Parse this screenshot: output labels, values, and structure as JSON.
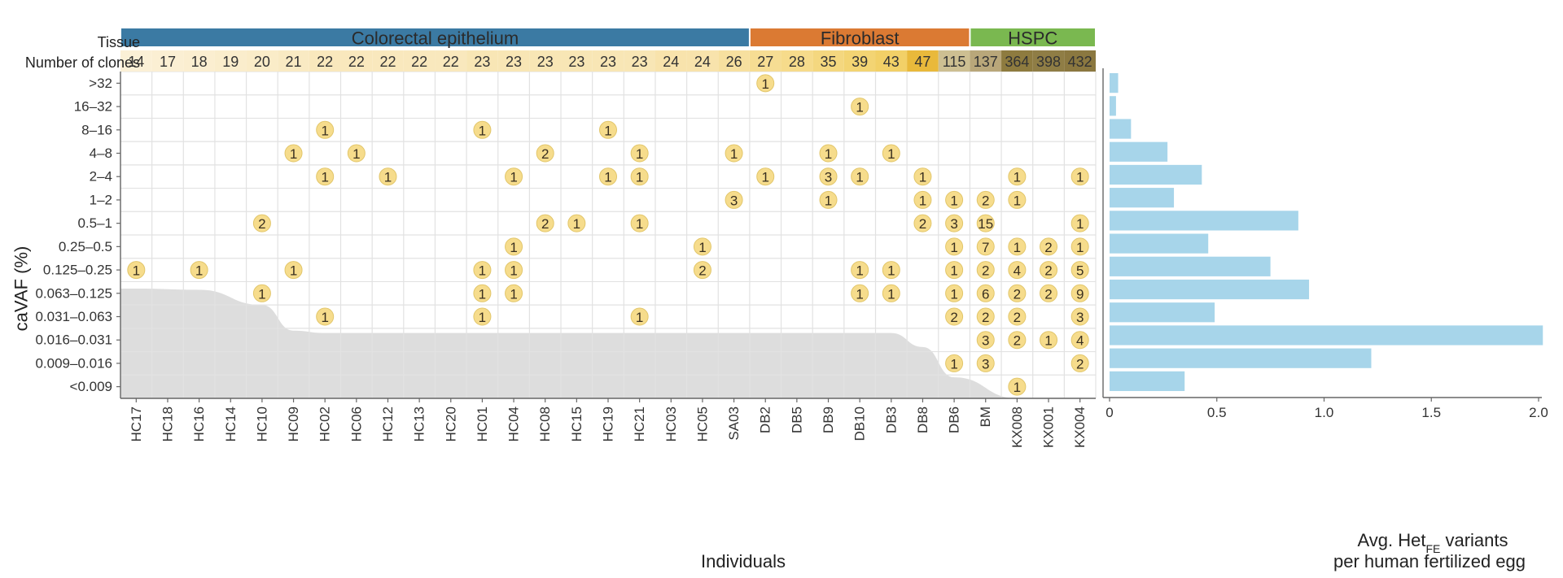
{
  "labels": {
    "tissue_row": "Tissue",
    "clones_row": "Number of clones",
    "y_axis": "caVAF (%)",
    "x_axis": "Individuals",
    "bar_axis_line1": "Avg. Het",
    "bar_axis_sub": "FE",
    "bar_axis_line1_end": " variants",
    "bar_axis_line2": "per human fertilized egg"
  },
  "chart_data": [
    {
      "type": "heatmap",
      "individuals": [
        "HC17",
        "HC18",
        "HC16",
        "HC14",
        "HC10",
        "HC09",
        "HC02",
        "HC06",
        "HC12",
        "HC13",
        "HC20",
        "HC01",
        "HC04",
        "HC08",
        "HC15",
        "HC19",
        "HC21",
        "HC03",
        "HC05",
        "SA03",
        "DB2",
        "DB5",
        "DB9",
        "DB10",
        "DB3",
        "DB8",
        "DB6",
        "BM",
        "KX008",
        "KX001",
        "KX004"
      ],
      "clones": [
        "14",
        "17",
        "18",
        "19",
        "20",
        "21",
        "22",
        "22",
        "22",
        "22",
        "22",
        "23",
        "23",
        "23",
        "23",
        "23",
        "23",
        "24",
        "24",
        "26",
        "27",
        "28",
        "35",
        "39",
        "43",
        "47",
        "115",
        "137",
        "364",
        "398",
        "432"
      ],
      "clone_colors": [
        "#fbf0d6",
        "#fbefd3",
        "#fbeed0",
        "#faedcc",
        "#faecc8",
        "#f9eac3",
        "#f9e8bd",
        "#f9e8bd",
        "#f9e8bd",
        "#f9e8bd",
        "#f9e8bd",
        "#f8e6b5",
        "#f8e6b5",
        "#f8e6b5",
        "#f8e6b5",
        "#f8e6b5",
        "#f8e6b5",
        "#f8e3ac",
        "#f8e3ac",
        "#f7e09f",
        "#f6dd93",
        "#f6db8b",
        "#f4d77f",
        "#f3d473",
        "#f2d067",
        "#e9b93b",
        "#cdbf92",
        "#b9a77a",
        "#8e7b3f",
        "#8f7d45",
        "#8b7840"
      ],
      "tissues": [
        {
          "name": "Colorectal epithelium",
          "start": 0,
          "end": 19,
          "color": "#3b7aa3"
        },
        {
          "name": "Fibroblast",
          "start": 20,
          "end": 26,
          "color": "#db7a33"
        },
        {
          "name": "HSPC",
          "start": 27,
          "end": 30,
          "color": "#7ab850"
        }
      ],
      "vaf_bins": [
        ">32",
        "16–32",
        "8–16",
        "4–8",
        "2–4",
        "1–2",
        "0.5–1",
        "0.25–0.5",
        "0.125–0.25",
        "0.063–0.125",
        "0.031–0.063",
        "0.016–0.031",
        "0.009–0.016",
        "<0.009"
      ],
      "counts": [
        {
          "individual": "DB2",
          "bin": ">32",
          "count": 1
        },
        {
          "individual": "DB10",
          "bin": "16–32",
          "count": 1
        },
        {
          "individual": "HC02",
          "bin": "8–16",
          "count": 1
        },
        {
          "individual": "HC01",
          "bin": "8–16",
          "count": 1
        },
        {
          "individual": "HC19",
          "bin": "8–16",
          "count": 1
        },
        {
          "individual": "HC09",
          "bin": "4–8",
          "count": 1
        },
        {
          "individual": "HC06",
          "bin": "4–8",
          "count": 1
        },
        {
          "individual": "HC08",
          "bin": "4–8",
          "count": 2
        },
        {
          "individual": "HC21",
          "bin": "4–8",
          "count": 1
        },
        {
          "individual": "SA03",
          "bin": "4–8",
          "count": 1
        },
        {
          "individual": "DB9",
          "bin": "4–8",
          "count": 1
        },
        {
          "individual": "DB3",
          "bin": "4–8",
          "count": 1
        },
        {
          "individual": "HC02",
          "bin": "2–4",
          "count": 1
        },
        {
          "individual": "HC12",
          "bin": "2–4",
          "count": 1
        },
        {
          "individual": "HC04",
          "bin": "2–4",
          "count": 1
        },
        {
          "individual": "HC19",
          "bin": "2–4",
          "count": 1
        },
        {
          "individual": "HC21",
          "bin": "2–4",
          "count": 1
        },
        {
          "individual": "DB2",
          "bin": "2–4",
          "count": 1
        },
        {
          "individual": "DB9",
          "bin": "2–4",
          "count": 3
        },
        {
          "individual": "DB10",
          "bin": "2–4",
          "count": 1
        },
        {
          "individual": "DB8",
          "bin": "2–4",
          "count": 1
        },
        {
          "individual": "KX008",
          "bin": "2–4",
          "count": 1
        },
        {
          "individual": "KX004",
          "bin": "2–4",
          "count": 1
        },
        {
          "individual": "SA03",
          "bin": "1–2",
          "count": 3
        },
        {
          "individual": "DB9",
          "bin": "1–2",
          "count": 1
        },
        {
          "individual": "DB8",
          "bin": "1–2",
          "count": 1
        },
        {
          "individual": "DB6",
          "bin": "1–2",
          "count": 1
        },
        {
          "individual": "BM",
          "bin": "1–2",
          "count": 2
        },
        {
          "individual": "KX008",
          "bin": "1–2",
          "count": 1
        },
        {
          "individual": "HC10",
          "bin": "0.5–1",
          "count": 2
        },
        {
          "individual": "HC08",
          "bin": "0.5–1",
          "count": 2
        },
        {
          "individual": "HC15",
          "bin": "0.5–1",
          "count": 1
        },
        {
          "individual": "HC21",
          "bin": "0.5–1",
          "count": 1
        },
        {
          "individual": "DB8",
          "bin": "0.5–1",
          "count": 2
        },
        {
          "individual": "DB6",
          "bin": "0.5–1",
          "count": 3
        },
        {
          "individual": "BM",
          "bin": "0.5–1",
          "count": 15
        },
        {
          "individual": "KX004",
          "bin": "0.5–1",
          "count": 1
        },
        {
          "individual": "HC04",
          "bin": "0.25–0.5",
          "count": 1
        },
        {
          "individual": "HC05",
          "bin": "0.25–0.5",
          "count": 1
        },
        {
          "individual": "DB6",
          "bin": "0.25–0.5",
          "count": 1
        },
        {
          "individual": "BM",
          "bin": "0.25–0.5",
          "count": 7
        },
        {
          "individual": "KX008",
          "bin": "0.25–0.5",
          "count": 1
        },
        {
          "individual": "KX001",
          "bin": "0.25–0.5",
          "count": 2
        },
        {
          "individual": "KX004",
          "bin": "0.25–0.5",
          "count": 1
        },
        {
          "individual": "HC17",
          "bin": "0.125–0.25",
          "count": 1
        },
        {
          "individual": "HC16",
          "bin": "0.125–0.25",
          "count": 1
        },
        {
          "individual": "HC09",
          "bin": "0.125–0.25",
          "count": 1
        },
        {
          "individual": "HC01",
          "bin": "0.125–0.25",
          "count": 1
        },
        {
          "individual": "HC04",
          "bin": "0.125–0.25",
          "count": 1
        },
        {
          "individual": "HC05",
          "bin": "0.125–0.25",
          "count": 2
        },
        {
          "individual": "DB10",
          "bin": "0.125–0.25",
          "count": 1
        },
        {
          "individual": "DB3",
          "bin": "0.125–0.25",
          "count": 1
        },
        {
          "individual": "DB6",
          "bin": "0.125–0.25",
          "count": 1
        },
        {
          "individual": "BM",
          "bin": "0.125–0.25",
          "count": 2
        },
        {
          "individual": "KX008",
          "bin": "0.125–0.25",
          "count": 4
        },
        {
          "individual": "KX001",
          "bin": "0.125–0.25",
          "count": 2
        },
        {
          "individual": "KX004",
          "bin": "0.125–0.25",
          "count": 5
        },
        {
          "individual": "HC10",
          "bin": "0.063–0.125",
          "count": 1
        },
        {
          "individual": "HC01",
          "bin": "0.063–0.125",
          "count": 1
        },
        {
          "individual": "HC04",
          "bin": "0.063–0.125",
          "count": 1
        },
        {
          "individual": "DB10",
          "bin": "0.063–0.125",
          "count": 1
        },
        {
          "individual": "DB3",
          "bin": "0.063–0.125",
          "count": 1
        },
        {
          "individual": "DB6",
          "bin": "0.063–0.125",
          "count": 1
        },
        {
          "individual": "BM",
          "bin": "0.063–0.125",
          "count": 6
        },
        {
          "individual": "KX008",
          "bin": "0.063–0.125",
          "count": 2
        },
        {
          "individual": "KX001",
          "bin": "0.063–0.125",
          "count": 2
        },
        {
          "individual": "KX004",
          "bin": "0.063–0.125",
          "count": 9
        },
        {
          "individual": "HC02",
          "bin": "0.031–0.063",
          "count": 1
        },
        {
          "individual": "HC01",
          "bin": "0.031–0.063",
          "count": 1
        },
        {
          "individual": "HC21",
          "bin": "0.031–0.063",
          "count": 1
        },
        {
          "individual": "DB6",
          "bin": "0.031–0.063",
          "count": 2
        },
        {
          "individual": "BM",
          "bin": "0.031–0.063",
          "count": 2
        },
        {
          "individual": "KX008",
          "bin": "0.031–0.063",
          "count": 2
        },
        {
          "individual": "KX004",
          "bin": "0.031–0.063",
          "count": 3
        },
        {
          "individual": "BM",
          "bin": "0.016–0.031",
          "count": 3
        },
        {
          "individual": "KX008",
          "bin": "0.016–0.031",
          "count": 2
        },
        {
          "individual": "KX001",
          "bin": "0.016–0.031",
          "count": 1
        },
        {
          "individual": "KX004",
          "bin": "0.016–0.031",
          "count": 4
        },
        {
          "individual": "DB6",
          "bin": "0.009–0.016",
          "count": 1
        },
        {
          "individual": "BM",
          "bin": "0.009–0.016",
          "count": 3
        },
        {
          "individual": "KX004",
          "bin": "0.009–0.016",
          "count": 2
        },
        {
          "individual": "KX008",
          "bin": "<0.009",
          "count": 1
        }
      ],
      "detection_limit_shading": [
        {
          "individual": "HC17",
          "bin_index": 8.8
        },
        {
          "individual": "HC16",
          "bin_index": 8.85
        },
        {
          "individual": "HC10",
          "bin_index": 9.5
        },
        {
          "individual": "HC09",
          "bin_index": 10.6
        },
        {
          "individual": "HC02",
          "bin_index": 10.7
        },
        {
          "individual": "DB3",
          "bin_index": 10.7
        },
        {
          "individual": "DB8",
          "bin_index": 11.3
        },
        {
          "individual": "DB6",
          "bin_index": 12.6
        },
        {
          "individual": "KX008",
          "bin_index": 13.5
        }
      ],
      "colors": {
        "badge_fill": "#f6dc8c",
        "badge_stroke": "#e2c66a",
        "shade": "#dddddd",
        "grid": "#e2e2e2",
        "border": "#c8c8c8"
      }
    },
    {
      "type": "bar",
      "orientation": "horizontal",
      "categories": [
        ">32",
        "16–32",
        "8–16",
        "4–8",
        "2–4",
        "1–2",
        "0.5–1",
        "0.25–0.5",
        "0.125–0.25",
        "0.063–0.125",
        "0.031–0.063",
        "0.016–0.031",
        "0.009–0.016",
        "<0.009"
      ],
      "values": [
        0.04,
        0.03,
        0.1,
        0.27,
        0.43,
        0.3,
        0.88,
        0.46,
        0.75,
        0.93,
        0.49,
        2.02,
        1.22,
        0.35
      ],
      "xlim": [
        0,
        2.0
      ],
      "xticks": [
        "0",
        "0.5",
        "1.0",
        "1.5",
        "2.0"
      ],
      "xtick_values": [
        0,
        0.5,
        1.0,
        1.5,
        2.0
      ],
      "color": "#a7d5ea"
    }
  ]
}
